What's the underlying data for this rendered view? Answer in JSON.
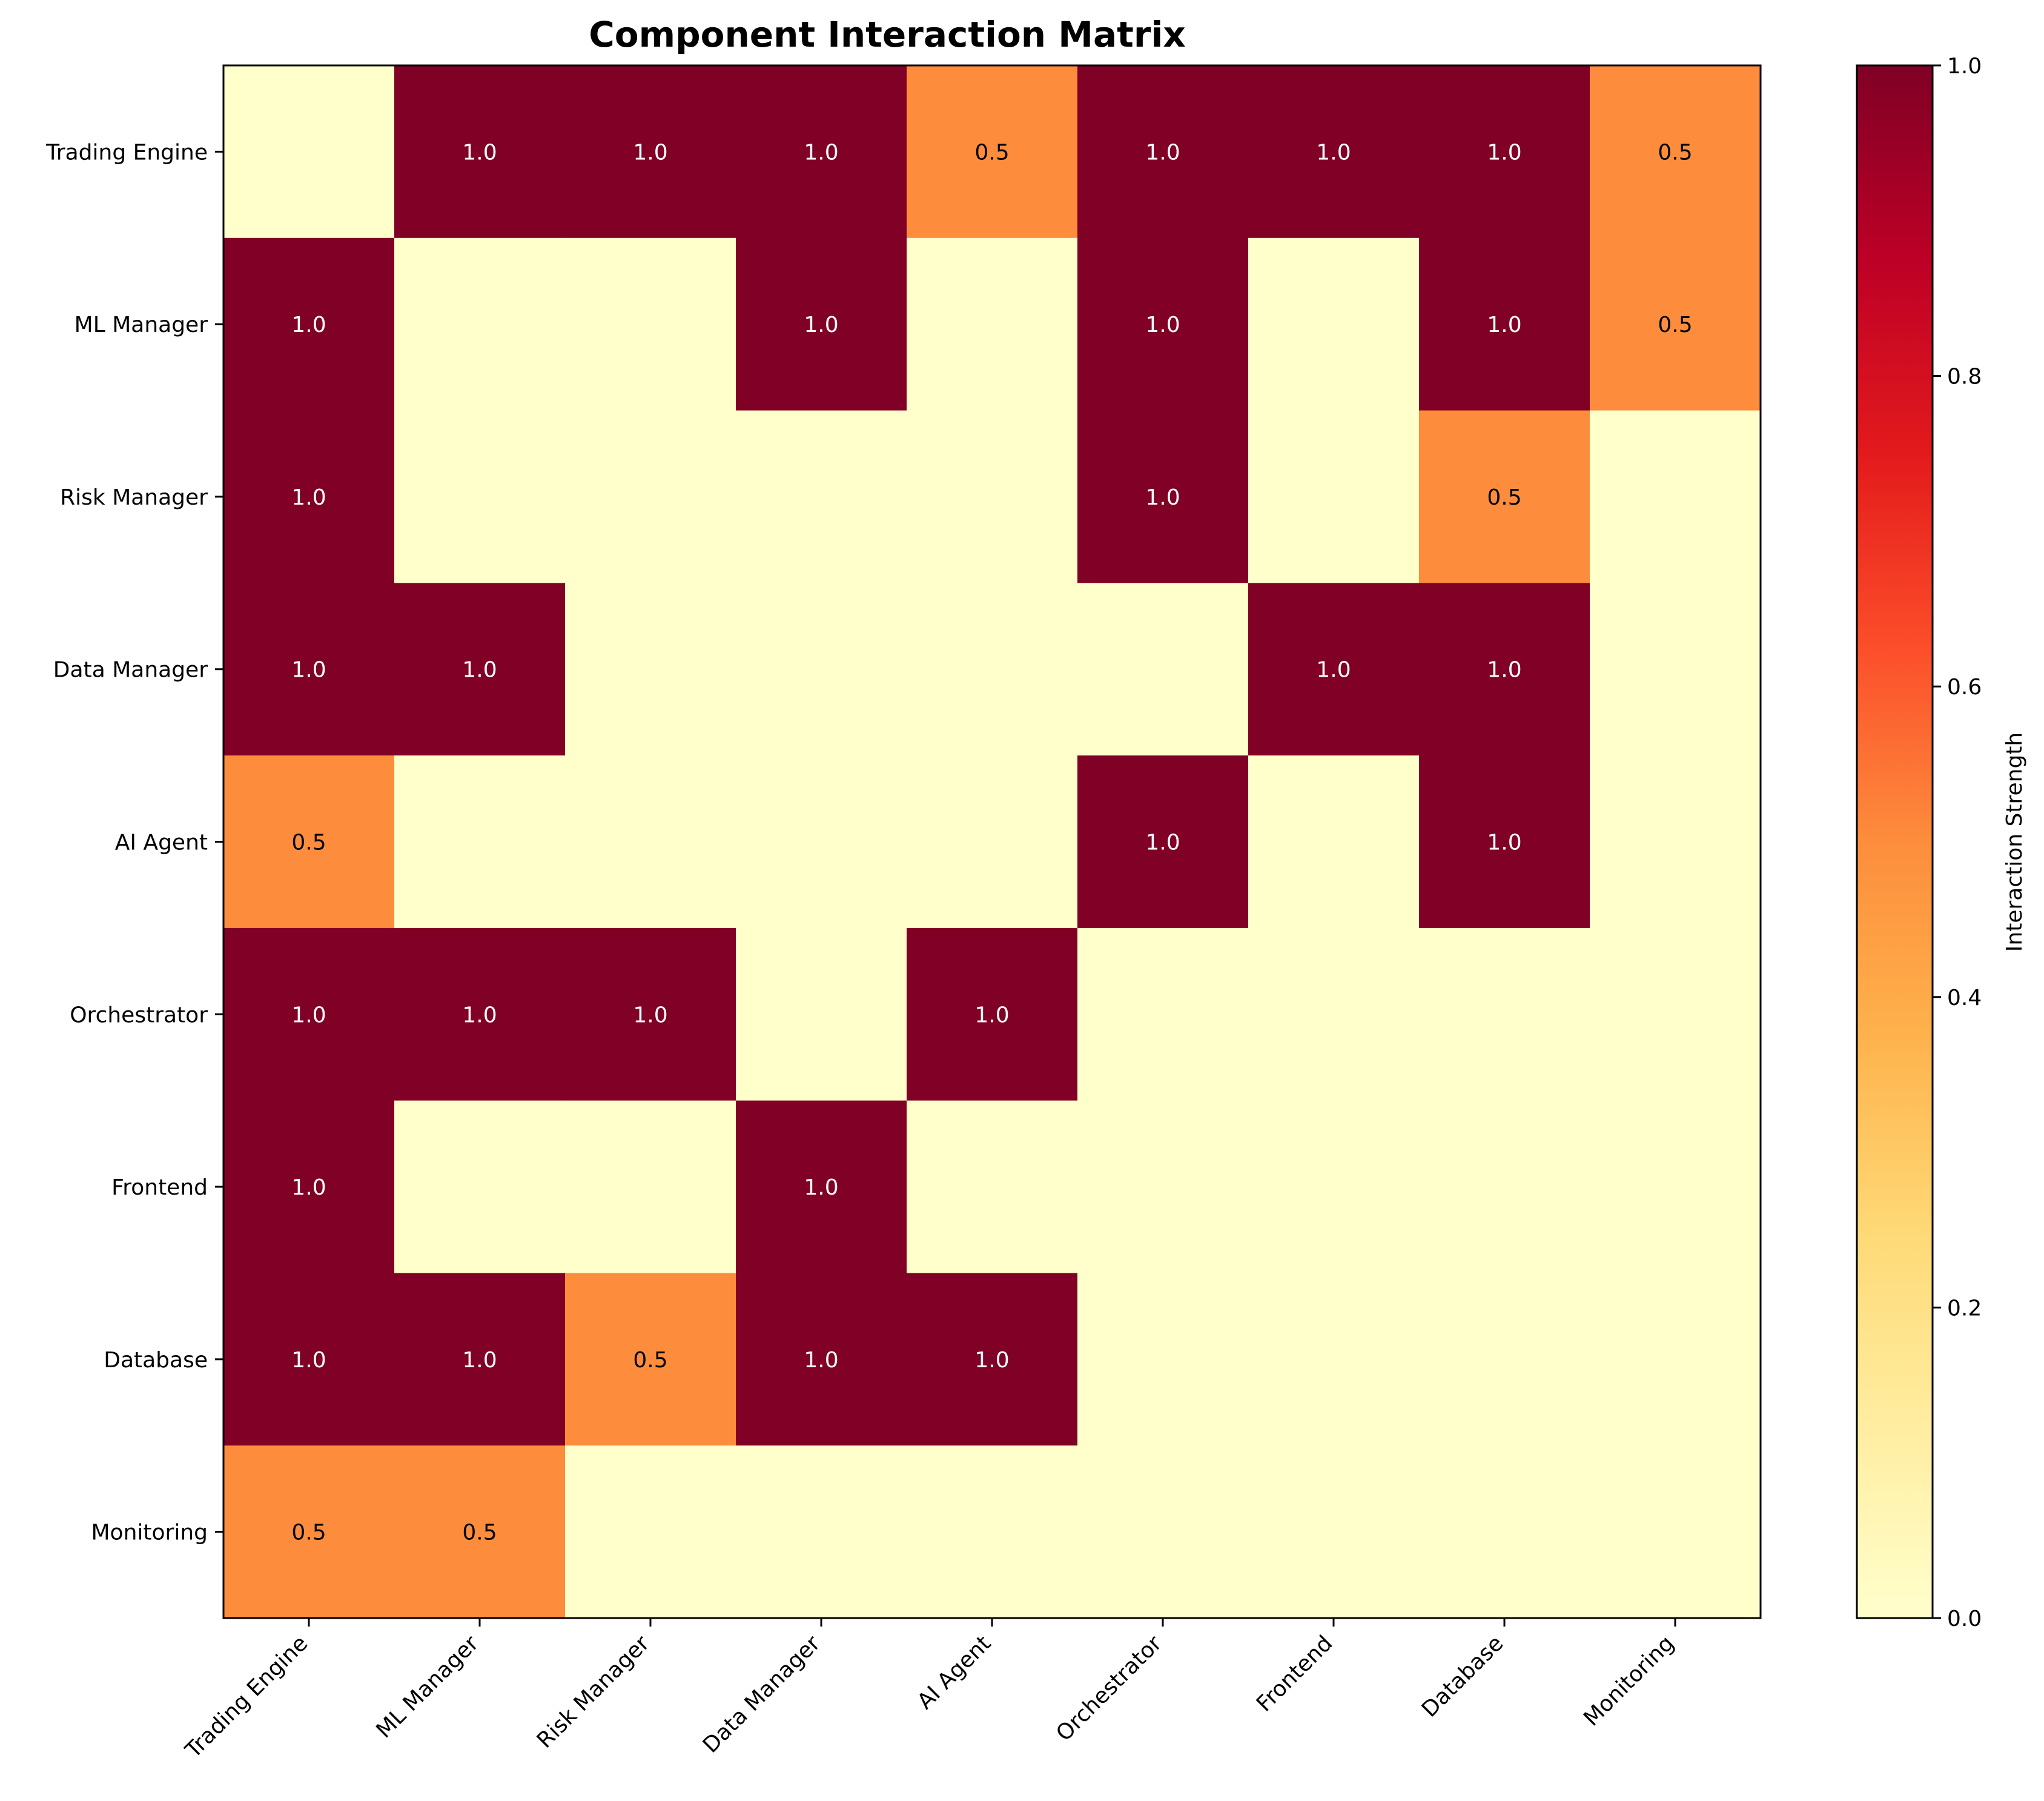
{
  "chart_data": {
    "type": "heatmap",
    "title": "Component Interaction Matrix",
    "rows": [
      "Trading Engine",
      "ML Manager",
      "Risk Manager",
      "Data Manager",
      "AI Agent",
      "Orchestrator",
      "Frontend",
      "Database",
      "Monitoring"
    ],
    "columns": [
      "Trading Engine",
      "ML Manager",
      "Risk Manager",
      "Data Manager",
      "AI Agent",
      "Orchestrator",
      "Frontend",
      "Database",
      "Monitoring"
    ],
    "values": [
      [
        0,
        1.0,
        1.0,
        1.0,
        0.5,
        1.0,
        1.0,
        1.0,
        0.5
      ],
      [
        1.0,
        0,
        0,
        1.0,
        0,
        1.0,
        0,
        1.0,
        0.5
      ],
      [
        1.0,
        0,
        0,
        0,
        0,
        1.0,
        0,
        0.5,
        0
      ],
      [
        1.0,
        1.0,
        0,
        0,
        0,
        0,
        1.0,
        1.0,
        0
      ],
      [
        0.5,
        0,
        0,
        0,
        0,
        1.0,
        0,
        1.0,
        0
      ],
      [
        1.0,
        1.0,
        1.0,
        0,
        1.0,
        0,
        0,
        0,
        0
      ],
      [
        1.0,
        0,
        0,
        1.0,
        0,
        0,
        0,
        0,
        0
      ],
      [
        1.0,
        1.0,
        0.5,
        1.0,
        1.0,
        0,
        0,
        0,
        0
      ],
      [
        0.5,
        0.5,
        0,
        0,
        0,
        0,
        0,
        0,
        0
      ]
    ],
    "value_format": "0.0",
    "show_zero_labels": false,
    "colorbar": {
      "label": "Interaction Strength",
      "range": [
        0.0,
        1.0
      ],
      "ticks": [
        0.0,
        0.2,
        0.4,
        0.6,
        0.8,
        1.0
      ],
      "tick_labels": [
        "0.0",
        "0.2",
        "0.4",
        "0.6",
        "0.8",
        "1.0"
      ],
      "colormap": "YlOrRd"
    },
    "colormap_stops": [
      "#ffffcc",
      "#ffeda0",
      "#fed976",
      "#feb24c",
      "#fd8d3c",
      "#fc4e2a",
      "#e31a1c",
      "#bd0026",
      "#800026"
    ],
    "grid": false
  }
}
